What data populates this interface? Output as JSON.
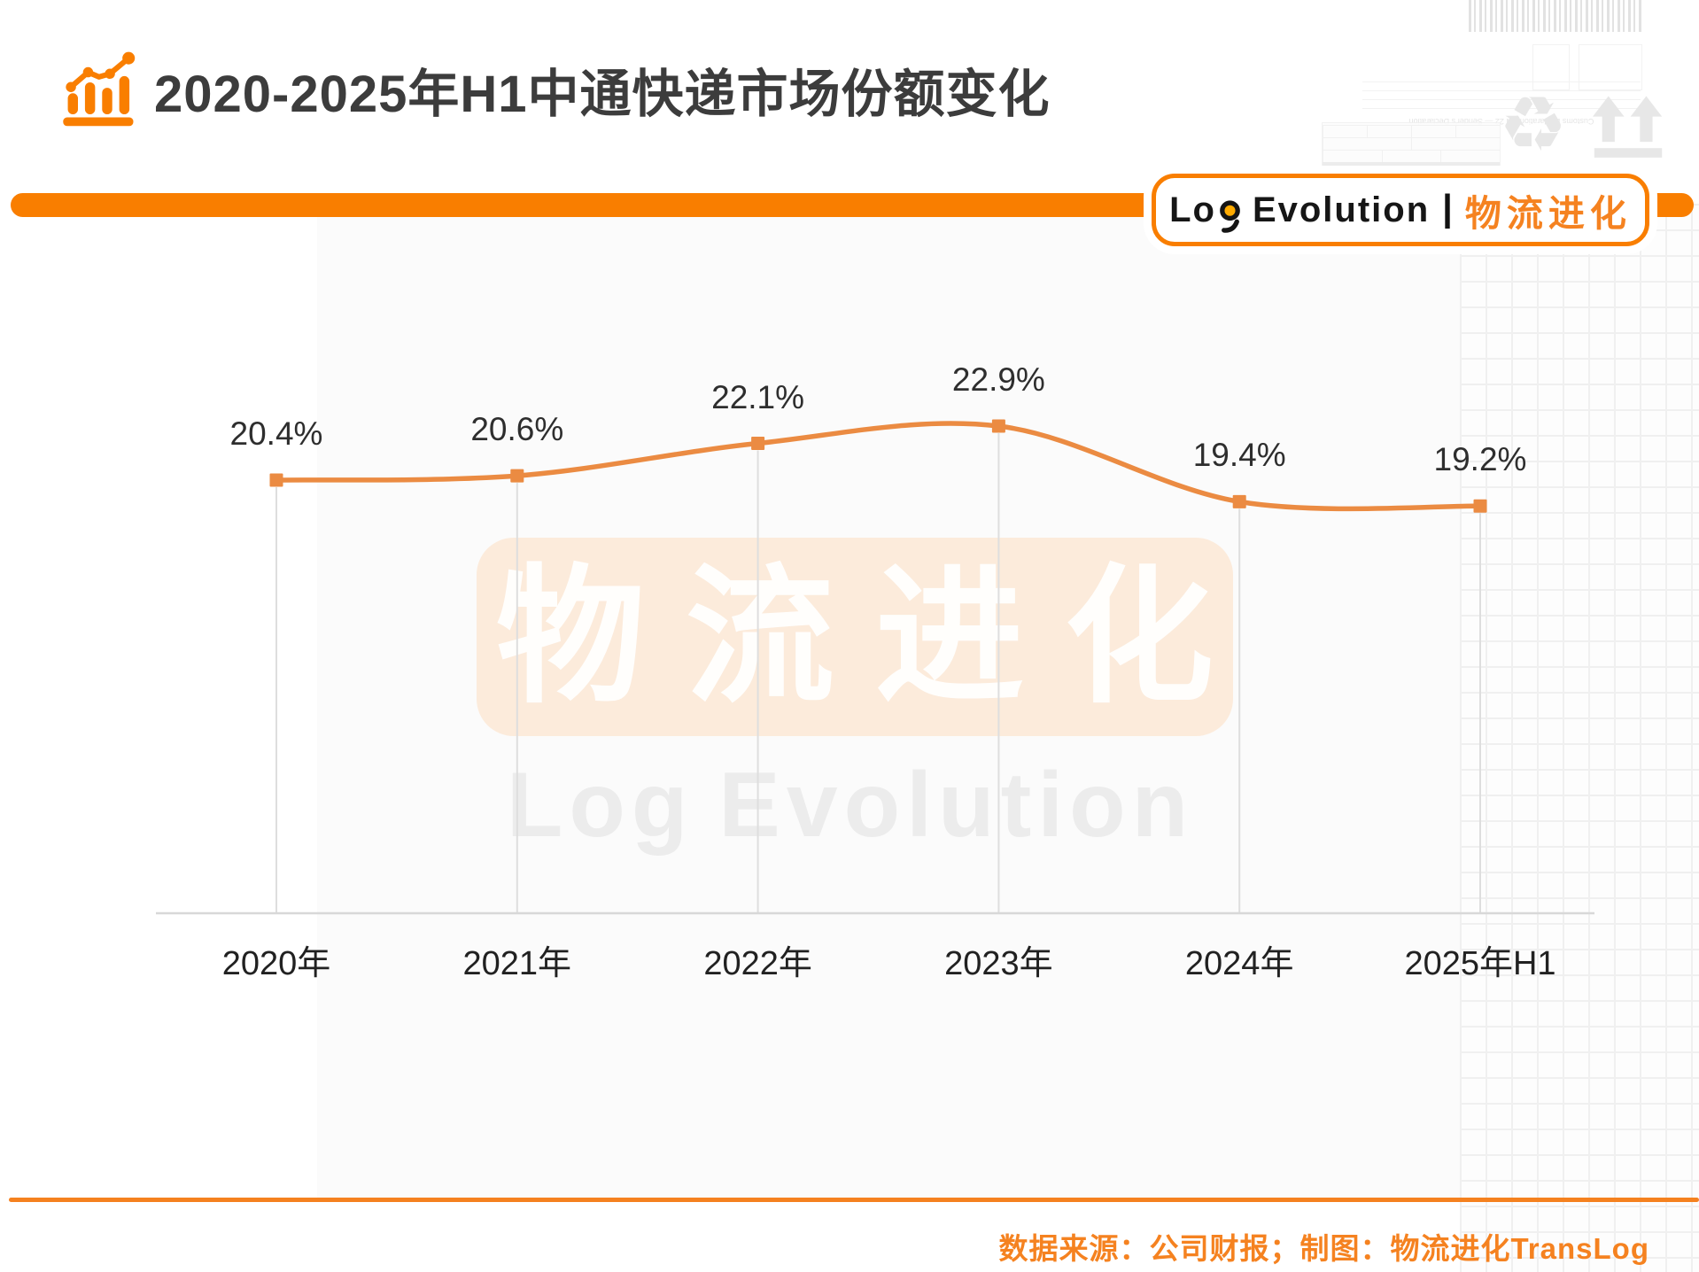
{
  "header": {
    "title": "2020-2025年H1中通快递市场份额变化",
    "icon": "bar-chart-trend-icon"
  },
  "brand_badge": {
    "en_prefix": "Lo",
    "en_g": "g",
    "en_suffix": "Evolution",
    "separator": "|",
    "cn": "物流进化"
  },
  "watermark": {
    "cn": "物流进化",
    "en_prefix": "Lo",
    "en_g": "g",
    "en_suffix": "Evolution"
  },
  "decor": {
    "postal_use_only": "POSTAL USE ONLY",
    "customs_line": "Customs Declaration CN 22 — Sender's Declaration",
    "recycle_icon": "♻"
  },
  "footer": {
    "credit": "数据来源：公司财报；制图：物流进化TransLog"
  },
  "chart_data": {
    "type": "line",
    "title": "2020-2025年H1中通快递市场份额变化",
    "categories": [
      "2020年",
      "2021年",
      "2022年",
      "2023年",
      "2024年",
      "2025年H1"
    ],
    "series": [
      {
        "name": "中通快递市场份额",
        "values": [
          20.4,
          20.6,
          22.1,
          22.9,
          19.4,
          19.2
        ]
      }
    ],
    "data_labels": [
      "20.4%",
      "20.6%",
      "22.1%",
      "22.9%",
      "19.4%",
      "19.2%"
    ],
    "unit": "%",
    "ylim": [
      18.5,
      23.5
    ],
    "grid": false,
    "legend": "none",
    "y_axis_visible": false,
    "x_axis_visible": true,
    "line_color": "#EB8B42",
    "marker": "square",
    "label_color": "#2E2E2E"
  },
  "colors": {
    "accent": "#F97E00",
    "line": "#EB8B42",
    "credit_text": "#F58220",
    "watermark_bg": "#FCEBDB",
    "logo_dot": "#FFAB00"
  }
}
